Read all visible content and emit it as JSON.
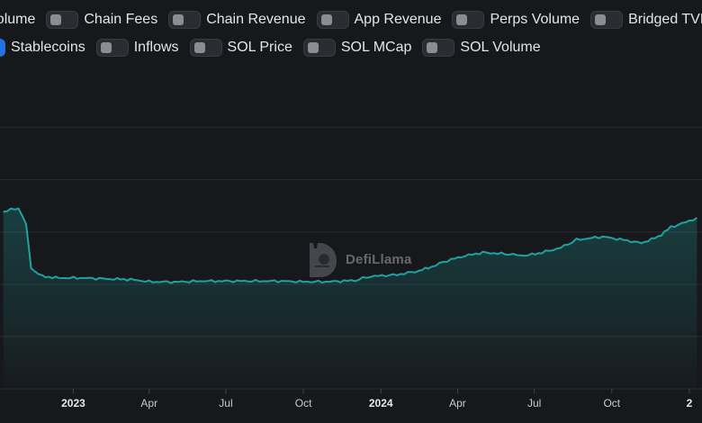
{
  "toggles_row1": [
    {
      "label": "Volume",
      "on": false,
      "cut": true
    },
    {
      "label": "Chain Fees",
      "on": false
    },
    {
      "label": "Chain Revenue",
      "on": false
    },
    {
      "label": "App Revenue",
      "on": false
    },
    {
      "label": "Perps Volume",
      "on": false
    },
    {
      "label": "Bridged TVL",
      "on": false
    }
  ],
  "toggles_row2": [
    {
      "label": "Stablecoins",
      "on": true,
      "cut": true
    },
    {
      "label": "Inflows",
      "on": false
    },
    {
      "label": "SOL Price",
      "on": false
    },
    {
      "label": "SOL MCap",
      "on": false
    },
    {
      "label": "SOL Volume",
      "on": false
    }
  ],
  "watermark": {
    "text": "DefiLlama"
  },
  "colors": {
    "line": "#1fa3a0",
    "grid": "#2a2b30",
    "background": "#17181c",
    "toggle_on": "#2172e5"
  },
  "chart_data": {
    "type": "area",
    "series": [
      {
        "values": [
          [
            "2022-10-10",
            0.56
          ],
          [
            "2022-10-28",
            0.57
          ],
          [
            "2022-11-06",
            0.52
          ],
          [
            "2022-11-12",
            0.38
          ],
          [
            "2022-11-25",
            0.355
          ],
          [
            "2022-12-15",
            0.35
          ],
          [
            "2023-01-10",
            0.35
          ],
          [
            "2023-02-10",
            0.347
          ],
          [
            "2023-03-10",
            0.345
          ],
          [
            "2023-04-01",
            0.338
          ],
          [
            "2023-05-01",
            0.337
          ],
          [
            "2023-06-01",
            0.34
          ],
          [
            "2023-07-01",
            0.34
          ],
          [
            "2023-08-01",
            0.34
          ],
          [
            "2023-09-01",
            0.34
          ],
          [
            "2023-10-01",
            0.338
          ],
          [
            "2023-11-01",
            0.338
          ],
          [
            "2023-12-01",
            0.342
          ],
          [
            "2023-12-20",
            0.355
          ],
          [
            "2024-01-20",
            0.36
          ],
          [
            "2024-02-15",
            0.372
          ],
          [
            "2024-03-01",
            0.385
          ],
          [
            "2024-03-20",
            0.405
          ],
          [
            "2024-04-10",
            0.42
          ],
          [
            "2024-05-01",
            0.43
          ],
          [
            "2024-06-01",
            0.425
          ],
          [
            "2024-06-20",
            0.42
          ],
          [
            "2024-07-10",
            0.43
          ],
          [
            "2024-08-01",
            0.445
          ],
          [
            "2024-08-20",
            0.47
          ],
          [
            "2024-09-20",
            0.48
          ],
          [
            "2024-10-15",
            0.47
          ],
          [
            "2024-11-05",
            0.46
          ],
          [
            "2024-11-25",
            0.48
          ],
          [
            "2024-12-10",
            0.51
          ],
          [
            "2025-01-01",
            0.53
          ],
          [
            "2025-01-10",
            0.54
          ]
        ]
      }
    ],
    "x_axis": {
      "ticks": [
        {
          "label": "2023",
          "date": "2023-01-01",
          "bold": true
        },
        {
          "label": "Apr",
          "date": "2023-04-01"
        },
        {
          "label": "Jul",
          "date": "2023-07-01"
        },
        {
          "label": "Oct",
          "date": "2023-10-01"
        },
        {
          "label": "2024",
          "date": "2024-01-01",
          "bold": true
        },
        {
          "label": "Apr",
          "date": "2024-04-01"
        },
        {
          "label": "Jul",
          "date": "2024-07-01"
        },
        {
          "label": "Oct",
          "date": "2024-10-01"
        },
        {
          "label": "2",
          "date": "2025-01-01",
          "bold": true
        }
      ]
    },
    "grid": true,
    "legend": "none"
  }
}
